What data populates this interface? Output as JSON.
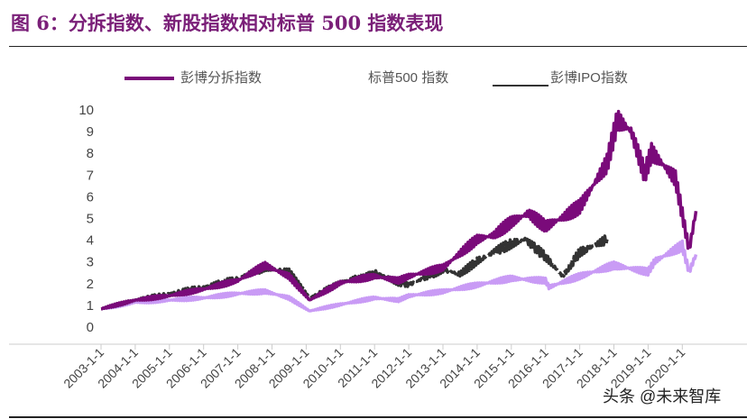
{
  "title": "图 6：分拆指数、新股指数相对标普 500 指数表现",
  "watermark": "头条 @未来智库",
  "chart_data": {
    "type": "line",
    "title": "",
    "xlabel": "",
    "ylabel": "",
    "ylim": [
      0,
      10
    ],
    "yticks": [
      "0",
      "1",
      "2",
      "3",
      "4",
      "5",
      "6",
      "7",
      "8",
      "9",
      "10"
    ],
    "xticks": [
      "2003-1-1",
      "2004-1-1",
      "2005-1-1",
      "2006-1-1",
      "2007-1-1",
      "2008-1-1",
      "2009-1-1",
      "2010-1-1",
      "2011-1-1",
      "2012-1-1",
      "2013-1-1",
      "2014-1-1",
      "2015-1-1",
      "2016-1-1",
      "2017-1-1",
      "2018-1-1",
      "2019-1-1",
      "2020-1-1"
    ],
    "legend_position": "top",
    "grid": false,
    "series": [
      {
        "name": "彭博分拆指数",
        "color": "#7a0a7a",
        "x": [
          2003,
          2004,
          2005,
          2006,
          2007,
          2007.8,
          2008.5,
          2009.1,
          2010,
          2011,
          2011.7,
          2012,
          2013,
          2014,
          2014.5,
          2015,
          2015.5,
          2016,
          2016.5,
          2017,
          2017.8,
          2018.1,
          2018.5,
          2018.9,
          2019.1,
          2019.4,
          2019.8,
          2020.2,
          2020.4
        ],
        "y": [
          0.8,
          1.2,
          1.4,
          1.7,
          2.1,
          2.8,
          2.3,
          1.2,
          2.0,
          2.3,
          2.1,
          2.3,
          2.7,
          4.0,
          4.2,
          4.8,
          5.2,
          4.6,
          5.0,
          5.5,
          7.5,
          9.5,
          9.0,
          7.0,
          8.0,
          7.5,
          6.8,
          3.5,
          5.3
        ]
      },
      {
        "name": "标普500 指数",
        "color": "#c99bf5",
        "x": [
          2003,
          2004,
          2005,
          2006,
          2007,
          2007.8,
          2008.5,
          2009.1,
          2010,
          2011,
          2011.7,
          2012,
          2013,
          2014,
          2015,
          2016,
          2016.1,
          2017,
          2018,
          2019,
          2019.2,
          2020,
          2020.2,
          2020.4
        ],
        "y": [
          0.8,
          1.1,
          1.2,
          1.3,
          1.5,
          1.6,
          1.3,
          0.7,
          1.0,
          1.3,
          1.2,
          1.4,
          1.6,
          1.9,
          2.2,
          2.1,
          1.8,
          2.3,
          2.8,
          2.5,
          3.0,
          3.7,
          2.5,
          3.3
        ]
      },
      {
        "name": "彭博IPO指数",
        "color": "#333333",
        "x": [
          2003,
          2004,
          2005,
          2006,
          2007,
          2007.8,
          2008.5,
          2009.1,
          2010,
          2011,
          2011.7,
          2012,
          2013,
          2013.5,
          2014,
          2014.6,
          2015,
          2015.4,
          2016,
          2016.5,
          2017,
          2017.8
        ],
        "y": [
          0.8,
          1.2,
          1.5,
          1.8,
          2.2,
          2.7,
          2.5,
          1.3,
          2.0,
          2.5,
          2.0,
          1.9,
          2.6,
          2.4,
          3.0,
          3.5,
          3.8,
          4.0,
          3.2,
          2.3,
          3.4,
          4.0
        ]
      }
    ]
  }
}
